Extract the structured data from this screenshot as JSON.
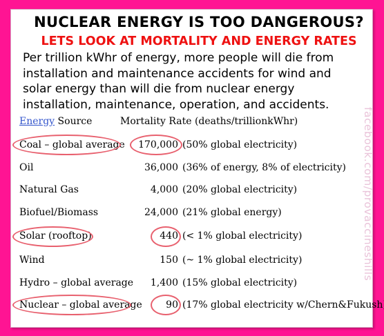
{
  "title": "NUCLEAR ENERGY IS TOO DANGEROUS?",
  "subtitle": "LETS LOOK AT MORTALITY AND ENERGY RATES",
  "intro": "Per trillion kWhr of energy, more people will die from\ninstallation and maintenance accidents for wind and\nsolar energy than will die from nuclear energy\ninstallation, maintenance, operation, and accidents.",
  "watermark": "facebook.com/provaccineshills",
  "table": {
    "header_energy": "Energy",
    "header_source": " Source",
    "header_rate": "Mortality Rate (deaths/trillionkWhr)",
    "rows": [
      {
        "source": "Coal – global average",
        "rate": "170,000",
        "note": "(50% global electricity)",
        "circled": true
      },
      {
        "source": "Oil",
        "rate": "36,000",
        "note": "(36% of energy, 8% of electricity)",
        "circled": false
      },
      {
        "source": "Natural Gas",
        "rate": "4,000",
        "note": "(20% global electricity)",
        "circled": false
      },
      {
        "source": "Biofuel/Biomass",
        "rate": "24,000",
        "note": "(21% global energy)",
        "circled": false
      },
      {
        "source": "Solar (rooftop)",
        "rate": "440",
        "note": "(< 1% global electricity)",
        "circled": true
      },
      {
        "source": "Wind",
        "rate": "150",
        "note": "(~ 1% global electricity)",
        "circled": false
      },
      {
        "source": "Hydro – global average",
        "rate": "1,400",
        "note": "(15% global electricity)",
        "circled": false
      },
      {
        "source": "Nuclear – global average",
        "rate": "90",
        "note": "(17%  global electricity w/Chern&Fukush)",
        "circled": true
      }
    ]
  },
  "colors": {
    "frame": "#ff1493",
    "subtitle": "#ee1111",
    "circle": "#e8606e",
    "link": "#3355cc",
    "watermark": "#eac4da"
  }
}
